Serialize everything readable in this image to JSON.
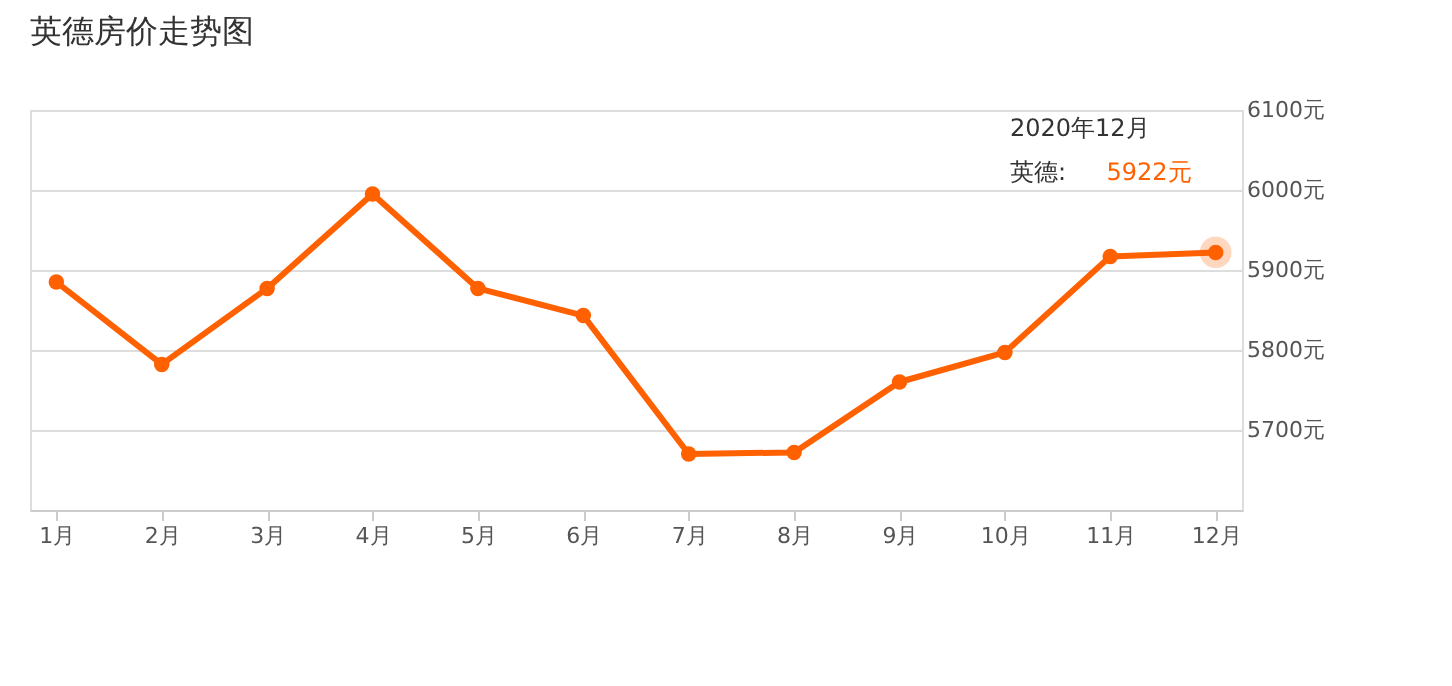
{
  "chart_data": {
    "type": "line",
    "title": "英德房价走势图",
    "categories": [
      "1月",
      "2月",
      "3月",
      "4月",
      "5月",
      "6月",
      "7月",
      "8月",
      "9月",
      "10月",
      "11月",
      "12月"
    ],
    "series": [
      {
        "color": "#ff6000",
        "values": [
          5885,
          5782,
          5877,
          5995,
          5877,
          5843,
          5670,
          5672,
          5760,
          5797,
          5917,
          5922
        ],
        "value_labels": [
          null,
          null,
          null,
          null,
          null,
          null,
          null,
          null,
          null,
          null,
          null,
          "5922元"
        ]
      }
    ],
    "ylim": [
      5600,
      6100
    ],
    "yticks": [
      {
        "value": 5700,
        "label": "5700元"
      },
      {
        "value": 5800,
        "label": "5800元"
      },
      {
        "value": 5900,
        "label": "5900元"
      },
      {
        "value": 6000,
        "label": "6000元"
      },
      {
        "value": 6100,
        "label": "6100元"
      }
    ],
    "annotations": [
      "2020年12月",
      "英德:"
    ],
    "grid": "y",
    "marker": "circle",
    "line_style": "solid"
  }
}
